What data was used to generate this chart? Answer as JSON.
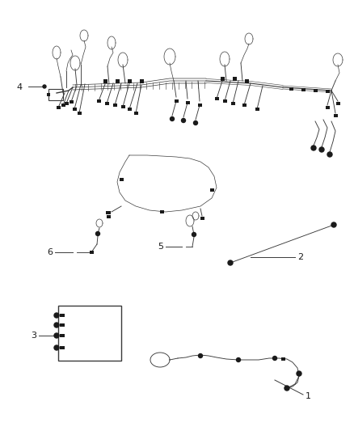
{
  "background_color": "#ffffff",
  "fig_width": 4.38,
  "fig_height": 5.33,
  "dpi": 100,
  "label_fontsize": 8,
  "line_color": "#3a3a3a",
  "lw_main": 1.0,
  "lw_wire": 0.65,
  "lw_thin": 0.5
}
